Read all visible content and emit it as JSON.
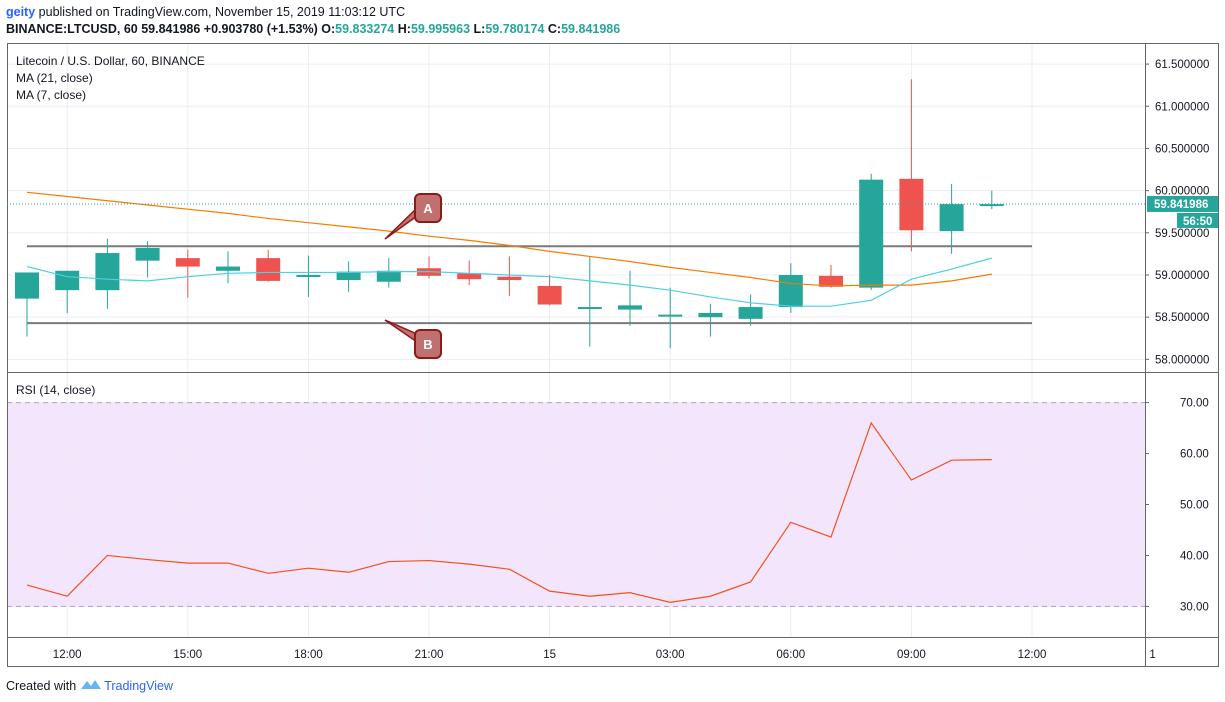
{
  "header": {
    "author": "geity",
    "published": "published on TradingView.com, November 15, 2019 11:03:12 UTC",
    "symbol": "BINANCE:LTCUSD, 60",
    "last": "59.841986",
    "change": "+0.903780 (+1.53%)",
    "o_label": "O:",
    "o": "59.833274",
    "h_label": "H:",
    "h": "59.995963",
    "l_label": "L:",
    "l": "59.780174",
    "c_label": "C:",
    "c": "59.841986"
  },
  "legend": {
    "title": "Litecoin / U.S. Dollar, 60, BINANCE",
    "ma21": "MA (21, close)",
    "ma7": "MA (7, close)",
    "rsi": "RSI (14, close)"
  },
  "price_label": "59.841986",
  "countdown": "56:50",
  "annotations": {
    "a": "A",
    "b": "B"
  },
  "footer": {
    "created": "Created with",
    "brand": "TradingView"
  },
  "colors": {
    "up": "#26a69a",
    "down": "#ef5350",
    "ma21": "#f57c00",
    "ma7": "#4dd0e1",
    "rsi": "#f4511e",
    "rsi_band": "#f3e5fc",
    "hline": "#7b7b7b",
    "callout": "#c0706e"
  },
  "chart_data": [
    {
      "type": "candlestick",
      "title": "Litecoin / U.S. Dollar, 60, BINANCE",
      "x": [
        "11:00",
        "12:00",
        "13:00",
        "14:00",
        "15:00",
        "16:00",
        "17:00",
        "18:00",
        "19:00",
        "20:00",
        "21:00",
        "22:00",
        "23:00",
        "15",
        "01:00",
        "02:00",
        "03:00",
        "04:00",
        "05:00",
        "06:00",
        "07:00",
        "08:00",
        "09:00",
        "10:00",
        "11:00"
      ],
      "xticks": [
        "12:00",
        "15:00",
        "18:00",
        "21:00",
        "15",
        "03:00",
        "06:00",
        "09:00",
        "12:00",
        "1"
      ],
      "open": [
        58.72,
        58.82,
        58.82,
        59.17,
        59.2,
        59.05,
        59.2,
        59.0,
        58.94,
        58.92,
        59.08,
        59.02,
        58.98,
        58.87,
        58.6,
        58.59,
        58.52,
        58.5,
        58.48,
        58.62,
        58.99,
        58.85,
        60.14,
        59.52,
        59.83
      ],
      "high": [
        59.03,
        59.05,
        59.43,
        59.4,
        59.3,
        59.28,
        59.3,
        59.23,
        59.16,
        59.2,
        59.22,
        59.17,
        59.22,
        59.0,
        59.22,
        59.05,
        58.85,
        58.66,
        58.77,
        59.14,
        59.12,
        60.2,
        61.32,
        60.08,
        60.0
      ],
      "low": [
        58.27,
        58.55,
        58.6,
        58.97,
        58.73,
        58.9,
        58.92,
        58.74,
        58.8,
        58.85,
        58.96,
        58.88,
        58.75,
        58.64,
        58.15,
        58.4,
        58.13,
        58.27,
        58.4,
        58.55,
        58.85,
        58.82,
        59.28,
        59.25,
        59.78
      ],
      "close": [
        59.03,
        59.05,
        59.26,
        59.32,
        59.1,
        59.1,
        58.93,
        59.0,
        59.04,
        59.05,
        58.99,
        58.95,
        58.94,
        58.65,
        58.62,
        58.64,
        58.53,
        58.55,
        58.62,
        59.0,
        58.86,
        60.13,
        59.53,
        59.84,
        59.84
      ],
      "series": [
        {
          "name": "MA (21, close)",
          "values": [
            59.98,
            59.93,
            59.88,
            59.83,
            59.78,
            59.73,
            59.67,
            59.62,
            59.57,
            59.52,
            59.46,
            59.41,
            59.35,
            59.28,
            59.22,
            59.16,
            59.09,
            59.03,
            58.97,
            58.9,
            58.87,
            58.88,
            58.88,
            58.93,
            59.01
          ]
        },
        {
          "name": "MA (7, close)",
          "values": [
            59.1,
            58.98,
            58.95,
            58.93,
            58.98,
            59.02,
            59.03,
            59.03,
            59.03,
            59.04,
            59.04,
            59.02,
            59.0,
            58.98,
            58.93,
            58.88,
            58.82,
            58.74,
            58.67,
            58.63,
            58.63,
            58.7,
            58.95,
            59.07,
            59.2
          ]
        }
      ],
      "ylim": [
        57.85,
        61.75
      ],
      "yticks": [
        "61.500000",
        "61.000000",
        "60.500000",
        "60.000000",
        "59.500000",
        "59.000000",
        "58.500000",
        "58.000000"
      ],
      "hlines": [
        59.34,
        58.43
      ],
      "grid": true
    },
    {
      "type": "line",
      "title": "RSI (14, close)",
      "series": [
        {
          "name": "RSI (14, close)",
          "values": [
            34.2,
            32.0,
            40.0,
            39.2,
            38.5,
            38.5,
            36.5,
            37.5,
            36.7,
            38.8,
            39.0,
            38.3,
            37.3,
            33.0,
            32.0,
            32.7,
            30.8,
            32.0,
            34.8,
            46.5,
            43.6,
            66.0,
            54.8,
            58.7,
            58.8
          ]
        }
      ],
      "ylim": [
        24,
        76
      ],
      "yticks": [
        "70.00",
        "60.00",
        "50.00",
        "40.00",
        "30.00"
      ],
      "band": [
        30,
        70
      ]
    }
  ]
}
